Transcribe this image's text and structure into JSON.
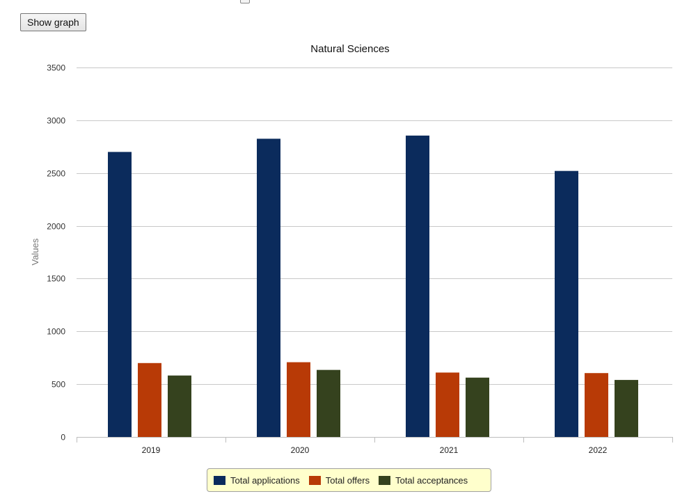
{
  "toolbar": {
    "show_graph_label": "Show graph"
  },
  "chart_data": {
    "type": "bar",
    "title": "Natural Sciences",
    "xlabel": "",
    "ylabel": "Values",
    "categories": [
      "2019",
      "2020",
      "2021",
      "2022"
    ],
    "series": [
      {
        "name": "Total applications",
        "color": "#0b2b5c",
        "values": [
          2700,
          2825,
          2855,
          2520
        ]
      },
      {
        "name": "Total offers",
        "color": "#b83a06",
        "values": [
          700,
          708,
          610,
          605
        ]
      },
      {
        "name": "Total acceptances",
        "color": "#35421e",
        "values": [
          582,
          635,
          562,
          540
        ]
      }
    ],
    "ylim": [
      0,
      3500
    ],
    "yticks": [
      0,
      500,
      1000,
      1500,
      2000,
      2500,
      3000,
      3500
    ],
    "grid": true,
    "legend_position": "bottom"
  }
}
